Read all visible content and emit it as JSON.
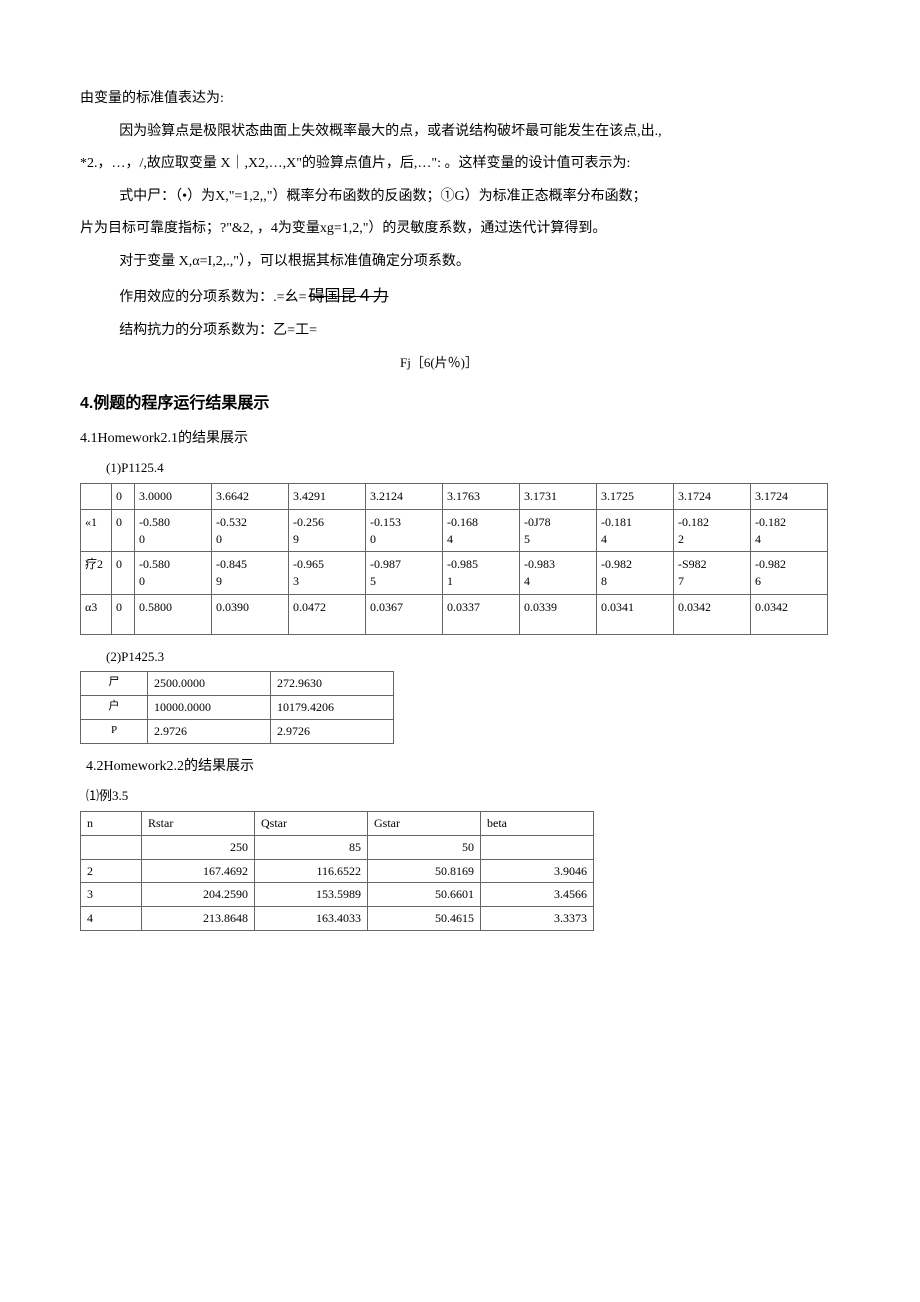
{
  "paragraphs": {
    "p1": "由变量的标准值表达为:",
    "p2": "因为验算点是极限状态曲面上失效概率最大的点，或者说结构破坏最可能发生在该点,出.,",
    "p3": "*2.，…，/,故应取变量 X｜,X2,…,X\"的验算点值片，后,…\": 。这样变量的设计值可表示为:",
    "p4": "式中尸：（•）为X,\"=1,2,,\"）概率分布函数的反函数；①G）为标准正态概率分布函数；",
    "p5": "片为目标可靠度指标；?\"&2, ，4为变量xg=1,2,\"）的灵敏度系数，通过迭代计算得到。",
    "p6": "对于变量 X,α=I,2,.,\"），可以根据其标准值确定分项系数。",
    "p7_lead": "作用效应的分项系数为：.=幺=",
    "p7_strike": "碍国昆４力",
    "p8_lead": "结构抗力的分项系数为：乙=工=",
    "p8_fj": "Fj［6(片％)］"
  },
  "section4_title": "4.例题的程序运行结果展示",
  "sub41": "4.1Homework2.1的结果展示",
  "t1_caption": "(1)P1125.4",
  "table1": {
    "rows": [
      [
        "",
        "0",
        "3.0000",
        "3.6642",
        "3.4291",
        "3.2124",
        "3.1763",
        "3.1731",
        "3.1725",
        "3.1724",
        "3.1724"
      ],
      [
        "«1",
        "0",
        "-0.580\n0",
        "-0.532\n0",
        "-0.256\n9",
        "-0.153\n0",
        "-0.168\n4",
        "-0J78\n5",
        "-0.181\n4",
        "-0.182\n2",
        "-0.182\n4"
      ],
      [
        "疗2",
        "0",
        "-0.580\n0",
        "-0.845\n9",
        "-0.965\n3",
        "-0.987\n5",
        "-0.985\n1",
        "-0.983\n4",
        "-0.982\n8",
        "-S982\n7",
        "-0.982\n6"
      ],
      [
        "α3",
        "0",
        "0.5800",
        "0.0390",
        "0.0472",
        "0.0367",
        "0.0337",
        "0.0339",
        "0.0341",
        "0.0342",
        "0.0342"
      ]
    ]
  },
  "t2_caption": "(2)P1425.3",
  "table2": {
    "rows": [
      [
        "尸",
        "2500.0000",
        "272.9630"
      ],
      [
        "户",
        "10000.0000",
        "10179.4206"
      ],
      [
        "P",
        "2.9726",
        "2.9726"
      ]
    ]
  },
  "sub42": "4.2Homework2.2的结果展示",
  "t3_caption": "⑴例3.5",
  "table3": {
    "header": [
      "n",
      "Rstar",
      "Qstar",
      "Gstar",
      "beta"
    ],
    "rows": [
      [
        "",
        "250",
        "85",
        "50",
        ""
      ],
      [
        "2",
        "167.4692",
        "116.6522",
        "50.8169",
        "3.9046"
      ],
      [
        "3",
        "204.2590",
        "153.5989",
        "50.6601",
        "3.4566"
      ],
      [
        "4",
        "213.8648",
        "163.4033",
        "50.4615",
        "3.3373"
      ]
    ]
  }
}
